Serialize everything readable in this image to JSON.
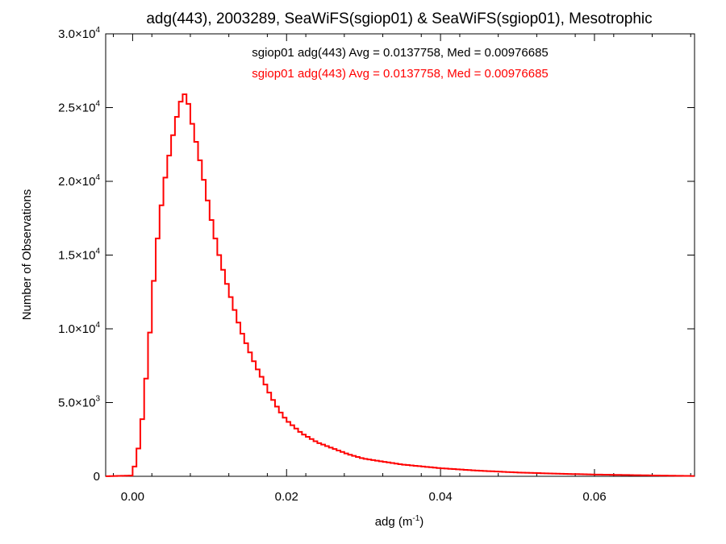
{
  "chart_data": {
    "type": "line",
    "title": "adg(443), 2003289, SeaWiFS(sgiop01) & SeaWiFS(sgiop01), Mesotrophic",
    "xlabel": "adg (m",
    "xlabel_sup": "-1",
    "xlabel_close": ")",
    "ylabel": "Number of Observations",
    "xlim": [
      -0.0035,
      0.073
    ],
    "ylim": [
      0,
      30000
    ],
    "grid": false,
    "x_ticks": [
      {
        "value": 0.0,
        "label": "0.00"
      },
      {
        "value": 0.02,
        "label": "0.02"
      },
      {
        "value": 0.04,
        "label": "0.04"
      },
      {
        "value": 0.06,
        "label": "0.06"
      }
    ],
    "y_ticks": [
      {
        "value": 0,
        "mant": "0",
        "exp": ""
      },
      {
        "value": 5000,
        "mant": "5.0×10",
        "exp": "3"
      },
      {
        "value": 10000,
        "mant": "1.0×10",
        "exp": "4"
      },
      {
        "value": 15000,
        "mant": "1.5×10",
        "exp": "4"
      },
      {
        "value": 20000,
        "mant": "2.0×10",
        "exp": "4"
      },
      {
        "value": 25000,
        "mant": "2.5×10",
        "exp": "4"
      },
      {
        "value": 30000,
        "mant": "3.0×10",
        "exp": "4"
      }
    ],
    "annotations": [
      {
        "text": "sgiop01 adg(443) Avg = 0.0137758, Med = 0.00976685",
        "color": "#000000"
      },
      {
        "text": "sgiop01 adg(443) Avg = 0.0137758, Med = 0.00976685",
        "color": "#ff0000"
      }
    ],
    "series": [
      {
        "color": "#ff0000",
        "x": [
          -0.0035,
          0.0,
          0.001,
          0.002,
          0.003,
          0.004,
          0.005,
          0.006,
          0.0065,
          0.007,
          0.0075,
          0.008,
          0.009,
          0.01,
          0.011,
          0.012,
          0.013,
          0.014,
          0.015,
          0.016,
          0.017,
          0.018,
          0.019,
          0.02,
          0.022,
          0.024,
          0.026,
          0.028,
          0.03,
          0.035,
          0.04,
          0.045,
          0.05,
          0.055,
          0.06,
          0.065,
          0.07,
          0.073
        ],
        "values": [
          0,
          50,
          2500,
          8000,
          15000,
          19500,
          22500,
          25000,
          25800,
          26000,
          24500,
          23300,
          20800,
          18000,
          15500,
          13500,
          11700,
          10000,
          8700,
          7500,
          6500,
          5400,
          4500,
          3800,
          2900,
          2300,
          1900,
          1500,
          1200,
          800,
          550,
          380,
          260,
          180,
          120,
          80,
          40,
          20
        ]
      }
    ]
  }
}
